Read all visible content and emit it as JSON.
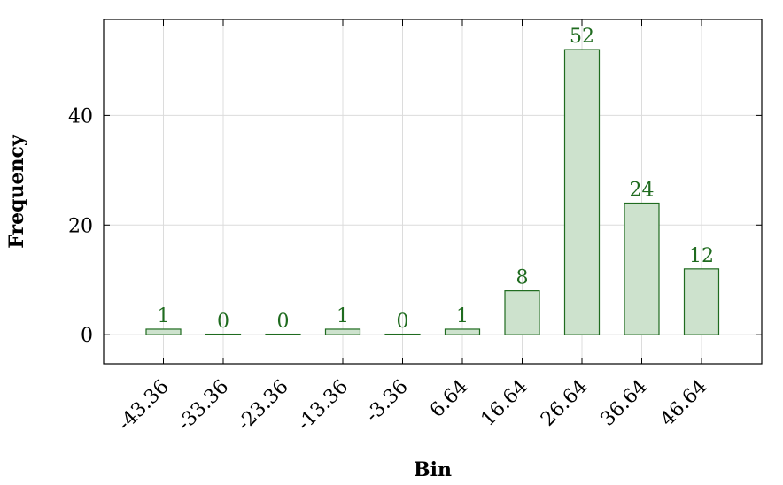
{
  "chart_data": {
    "type": "bar",
    "title": "",
    "xlabel": "Bin",
    "ylabel": "Frequency",
    "categories": [
      "-43.36",
      "-33.36",
      "-23.36",
      "-13.36",
      "-3.36",
      "6.64",
      "16.64",
      "26.64",
      "36.64",
      "46.64"
    ],
    "values": [
      1,
      0,
      0,
      1,
      0,
      1,
      8,
      52,
      24,
      12
    ],
    "yticks": [
      0,
      20,
      40
    ],
    "ylim": [
      -5.3,
      57.5
    ],
    "grid": true,
    "colors": {
      "bar_fill": "#cde2cd",
      "bar_stroke": "#1f6b1f",
      "label": "#1f6b1f",
      "grid": "#dcdcdc"
    }
  }
}
